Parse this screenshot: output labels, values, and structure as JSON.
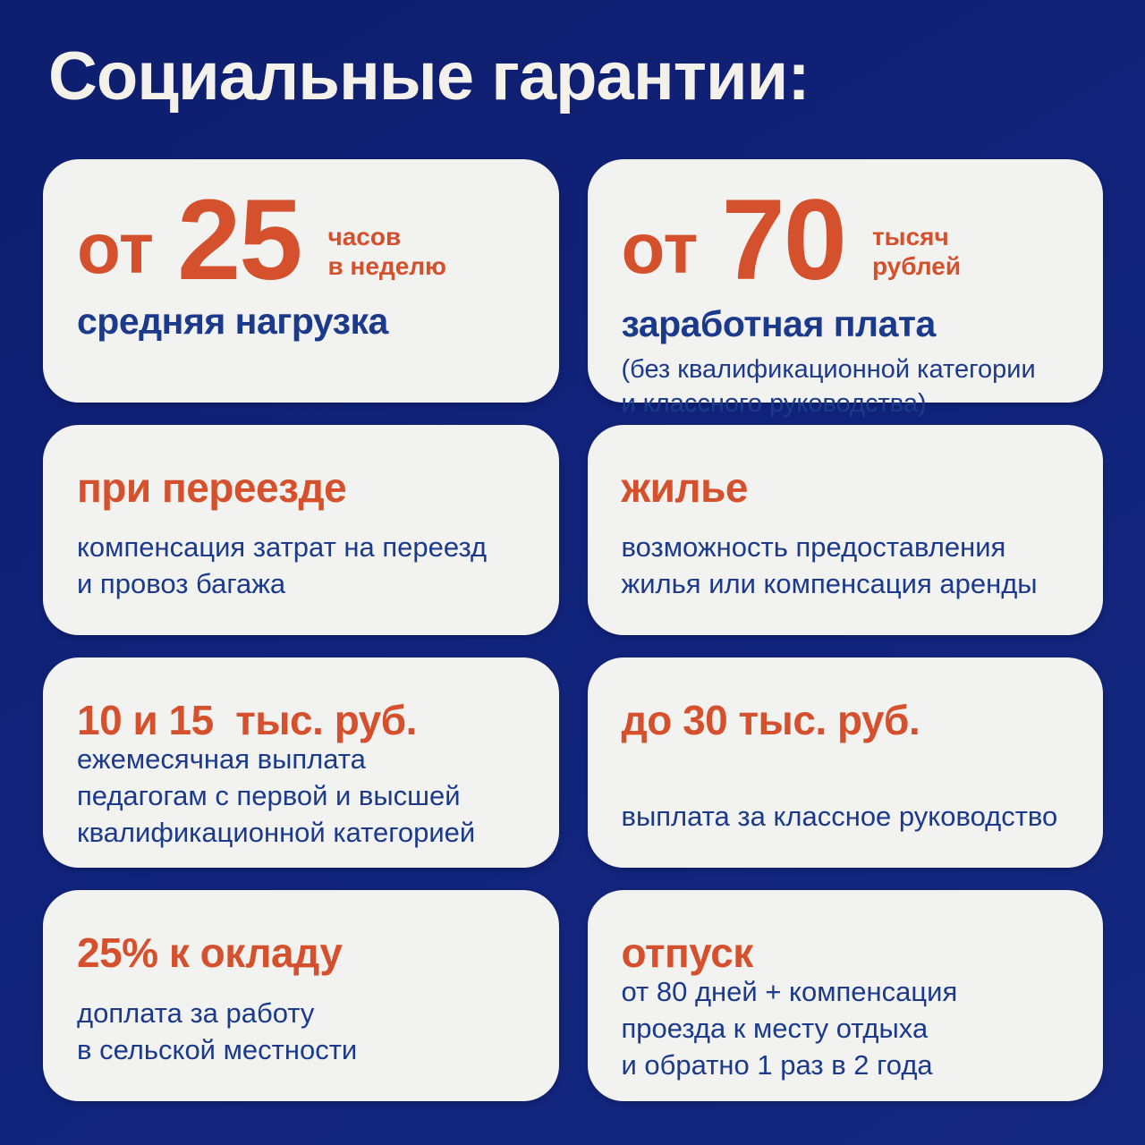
{
  "page": {
    "title": "Социальные гарантии:"
  },
  "colors": {
    "background": "#10227a",
    "card": "#f2f2f0",
    "accent": "#d5502c",
    "text": "#1c3a8c",
    "title": "#f4f1eb"
  },
  "cards": [
    {
      "id": "weekly-load",
      "big_prefix": "от",
      "big_number": "25",
      "unit_lines": [
        "часов",
        "в неделю"
      ],
      "body_bold": "средняя нагрузка"
    },
    {
      "id": "salary",
      "big_prefix": "от",
      "big_number": "70",
      "unit_lines": [
        "тысяч",
        "рублей"
      ],
      "body_bold": "заработная плата",
      "note_lines": [
        "(без квалификационной категории",
        "и классного руководства)"
      ]
    },
    {
      "id": "relocation",
      "heading": "при переезде",
      "body_lines": [
        "компенсация затрат на переезд",
        "и провоз багажа"
      ]
    },
    {
      "id": "housing",
      "heading": "жилье",
      "body_lines": [
        "возможность предоставления",
        "жилья или компенсация аренды"
      ]
    },
    {
      "id": "category-payment",
      "heading": "10 и 15  тыс. руб.",
      "body_lines": [
        "ежемесячная выплата",
        "педагогам с первой и высшей",
        "квалификационной категорией"
      ]
    },
    {
      "id": "class-supervision",
      "heading": "до 30 тыс. руб.",
      "body_lines": [
        "выплата за классное руководство"
      ]
    },
    {
      "id": "rural-bonus",
      "heading": "25% к окладу",
      "body_lines": [
        "доплата за работу",
        "в сельской местности"
      ]
    },
    {
      "id": "vacation",
      "heading": "отпуск",
      "body_lines": [
        "от 80 дней + компенсация",
        "проезда к месту отдыха",
        "и обратно 1 раз в 2 года"
      ]
    }
  ]
}
